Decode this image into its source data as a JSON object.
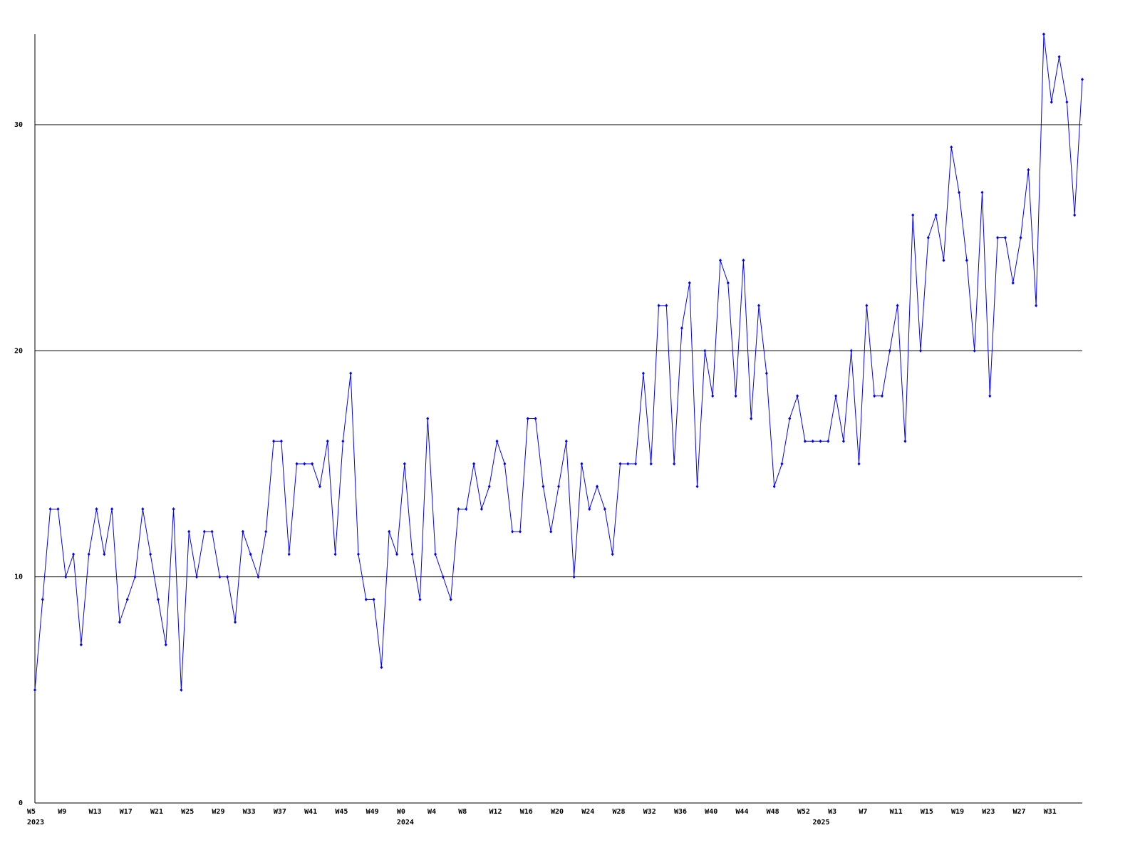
{
  "chart_data": {
    "type": "line",
    "categories": [
      "W5",
      null,
      null,
      null,
      "W9",
      null,
      null,
      null,
      "W13",
      null,
      null,
      null,
      "W17",
      null,
      null,
      null,
      "W21",
      null,
      null,
      null,
      "W25",
      null,
      null,
      null,
      "W29",
      null,
      null,
      null,
      "W33",
      null,
      null,
      null,
      "W37",
      null,
      null,
      null,
      "W41",
      null,
      null,
      null,
      "W45",
      null,
      null,
      null,
      "W49",
      null,
      null,
      null,
      "W0",
      null,
      null,
      null,
      "W4",
      null,
      null,
      null,
      "W8",
      null,
      null,
      null,
      "W12",
      null,
      null,
      null,
      "W16",
      null,
      null,
      null,
      "W20",
      null,
      null,
      null,
      "W24",
      null,
      null,
      null,
      "W28",
      null,
      null,
      null,
      "W32",
      null,
      null,
      null,
      "W36",
      null,
      null,
      null,
      "W40",
      null,
      null,
      null,
      "W44",
      null,
      null,
      null,
      "W48",
      null,
      null,
      null,
      "W52",
      null,
      null,
      null,
      "W3",
      null,
      null,
      null,
      "W7",
      null,
      null,
      null,
      "W11",
      null,
      null,
      null,
      "W15",
      null,
      null,
      null,
      "W19",
      null,
      null,
      null,
      "W23",
      null,
      null,
      null,
      "W27",
      null,
      null,
      null,
      "W31",
      null,
      null,
      null,
      null
    ],
    "years": [
      "2023",
      null,
      null,
      null,
      null,
      null,
      null,
      null,
      null,
      null,
      null,
      null,
      null,
      null,
      null,
      null,
      null,
      null,
      null,
      null,
      null,
      null,
      null,
      null,
      null,
      null,
      null,
      null,
      null,
      null,
      null,
      null,
      null,
      null,
      null,
      null,
      null,
      null,
      null,
      null,
      null,
      null,
      null,
      null,
      null,
      null,
      null,
      null,
      "2024",
      null,
      null,
      null,
      null,
      null,
      null,
      null,
      null,
      null,
      null,
      null,
      null,
      null,
      null,
      null,
      null,
      null,
      null,
      null,
      null,
      null,
      null,
      null,
      null,
      null,
      null,
      null,
      null,
      null,
      null,
      null,
      null,
      null,
      null,
      null,
      null,
      null,
      null,
      null,
      null,
      null,
      null,
      null,
      null,
      null,
      null,
      null,
      null,
      null,
      null,
      null,
      null,
      null,
      "2025",
      null,
      null,
      null,
      null,
      null,
      null,
      null,
      null,
      null,
      null,
      null,
      null,
      null,
      null,
      null,
      null,
      null,
      null,
      null,
      null,
      null,
      null,
      null,
      null,
      null,
      null,
      null,
      null,
      null,
      null,
      null,
      null,
      null,
      null
    ],
    "series": [
      {
        "color": "#0000ff",
        "values": [
          5,
          9,
          13,
          13,
          10,
          11,
          7,
          11,
          13,
          11,
          13,
          8,
          9,
          10,
          13,
          11,
          9,
          7,
          13,
          5,
          12,
          10,
          12,
          12,
          10,
          10,
          8,
          12,
          11,
          10,
          12,
          16,
          16,
          11,
          15,
          15,
          15,
          14,
          16,
          11,
          16,
          19,
          11,
          9,
          9,
          6,
          12,
          11,
          15,
          11,
          9,
          17,
          11,
          10,
          9,
          13,
          13,
          15,
          13,
          14,
          16,
          15,
          12,
          12,
          17,
          17,
          14,
          12,
          14,
          16,
          10,
          15,
          13,
          14,
          13,
          11,
          15,
          15,
          15,
          19,
          15,
          22,
          22,
          15,
          21,
          23,
          14,
          20,
          18,
          24,
          23,
          18,
          24,
          17,
          22,
          19,
          14,
          15,
          17,
          18,
          16,
          16,
          16,
          16,
          18,
          16,
          20,
          15,
          22,
          18,
          18,
          20,
          22,
          16,
          26,
          20,
          25,
          26,
          24,
          29,
          27,
          24,
          20,
          27,
          18,
          25,
          25,
          23,
          25,
          28,
          22,
          34,
          31,
          33,
          31,
          26,
          32
        ]
      }
    ],
    "ylim": [
      0,
      34
    ],
    "yticks": [
      0,
      10,
      20,
      30
    ],
    "grid": true
  }
}
